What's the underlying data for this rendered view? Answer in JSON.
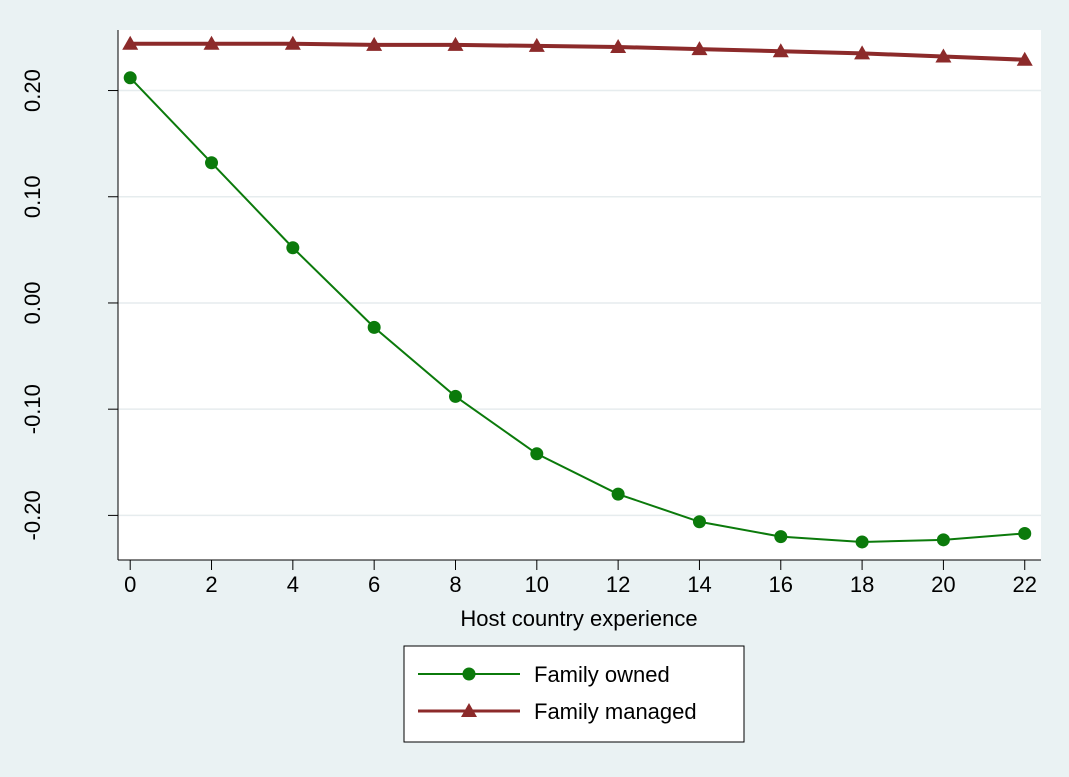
{
  "chart_data": {
    "type": "line",
    "title": "",
    "xlabel": "Host country experience",
    "ylabel": "",
    "x": [
      0,
      2,
      4,
      6,
      8,
      10,
      12,
      14,
      16,
      18,
      20,
      22
    ],
    "xticks": [
      "0",
      "2",
      "4",
      "6",
      "8",
      "10",
      "12",
      "14",
      "16",
      "18",
      "20",
      "22"
    ],
    "yticks": [
      {
        "value": -0.2,
        "label": "-0.20"
      },
      {
        "value": -0.1,
        "label": "-0.10"
      },
      {
        "value": 0.0,
        "label": "0.00"
      },
      {
        "value": 0.1,
        "label": "0.10"
      },
      {
        "value": 0.2,
        "label": "0.20"
      }
    ],
    "xlim": [
      -0.3,
      22.4
    ],
    "ylim": [
      -0.242,
      0.257
    ],
    "grid": true,
    "legend_position": "bottom",
    "series": [
      {
        "name": "Family owned",
        "color": "#0b7a0b",
        "marker": "circle",
        "values": [
          0.212,
          0.132,
          0.052,
          -0.023,
          -0.088,
          -0.142,
          -0.18,
          -0.206,
          -0.22,
          -0.225,
          -0.223,
          -0.217
        ]
      },
      {
        "name": "Family managed",
        "color": "#8c2a2a",
        "marker": "triangle",
        "values": [
          0.244,
          0.244,
          0.244,
          0.243,
          0.243,
          0.242,
          0.241,
          0.239,
          0.237,
          0.235,
          0.232,
          0.229
        ]
      }
    ]
  }
}
